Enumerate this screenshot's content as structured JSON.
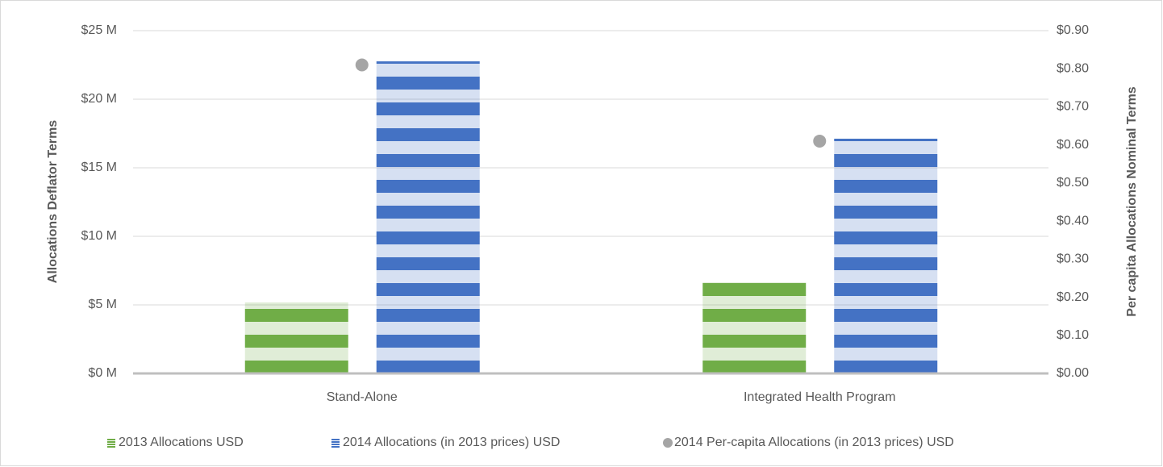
{
  "chart_data": {
    "type": "bar",
    "categories": [
      "Stand-Alone",
      "Integrated Health Program"
    ],
    "series": [
      {
        "name": "2013 Allocations USD",
        "color": "#70ad47",
        "values": [
          5.18,
          6.65
        ]
      },
      {
        "name": "2014 Allocations (in 2013 prices) USD",
        "color": "#4472c4",
        "values": [
          22.76,
          17.12
        ]
      },
      {
        "name": "2014 Per-capita Allocations (in 2013 prices) USD",
        "color": "#a5a5a5",
        "type": "scatter",
        "axis": "y2",
        "values": [
          0.81,
          0.61
        ]
      }
    ],
    "ylabel": "Allocations Deflator Terms",
    "y2label": "Per capita Allocations Nominal Terms",
    "ylim": [
      0,
      25
    ],
    "yticks": [
      {
        "value": 0,
        "label": "$0 M"
      },
      {
        "value": 5,
        "label": "$5 M"
      },
      {
        "value": 10,
        "label": "$10 M"
      },
      {
        "value": 15,
        "label": "$15 M"
      },
      {
        "value": 20,
        "label": "$20 M"
      },
      {
        "value": 25,
        "label": "$25 M"
      }
    ],
    "y2lim": [
      0,
      0.9
    ],
    "y2ticks": [
      {
        "value": 0,
        "label": "$0.00"
      },
      {
        "value": 0.1,
        "label": "$0.10"
      },
      {
        "value": 0.2,
        "label": "$0.20"
      },
      {
        "value": 0.3,
        "label": "$0.30"
      },
      {
        "value": 0.4,
        "label": "$0.40"
      },
      {
        "value": 0.5,
        "label": "$0.50"
      },
      {
        "value": 0.6,
        "label": "$0.60"
      },
      {
        "value": 0.7,
        "label": "$0.70"
      },
      {
        "value": 0.8,
        "label": "$0.80"
      },
      {
        "value": 0.9,
        "label": "$0.90"
      }
    ],
    "grid": true,
    "legend": "bottom"
  }
}
